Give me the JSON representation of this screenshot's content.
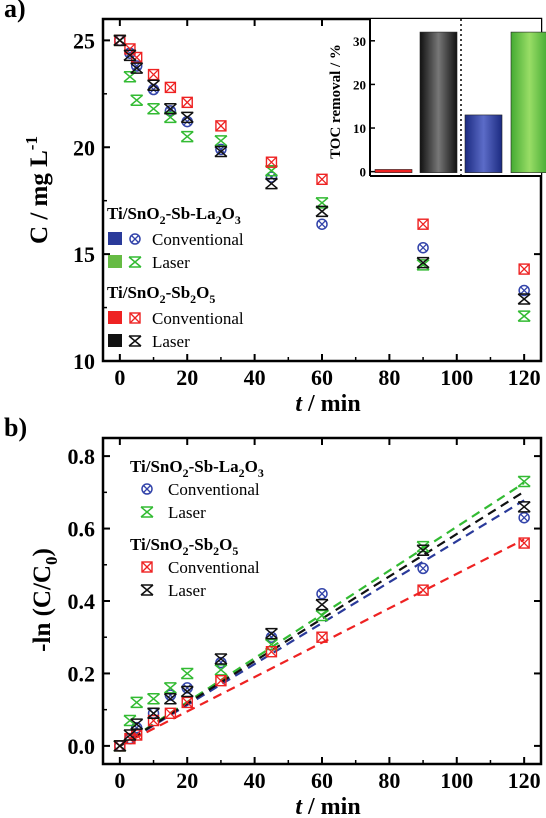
{
  "chart_data": [
    {
      "panel_label": "a)",
      "type": "scatter",
      "xlabel": "t / min",
      "ylabel": "C / mg L-1",
      "xlim": [
        -5,
        125
      ],
      "ylim": [
        10,
        26
      ],
      "xticks": [
        0,
        20,
        40,
        60,
        80,
        100,
        120
      ],
      "yticks": [
        10,
        15,
        20,
        25
      ],
      "legend_groups": [
        {
          "title": "Ti/SnO2-Sb-La2O3",
          "entries": [
            "Conventional",
            "Laser"
          ]
        },
        {
          "title": "Ti/SnO2-Sb2O5",
          "entries": [
            "Conventional",
            "Laser"
          ]
        }
      ],
      "series": [
        {
          "name": "Conventional",
          "group": "Ti/SnO2-Sb-La2O3",
          "color": "#3344aa",
          "marker": "circle-x",
          "x": [
            0,
            3,
            5,
            10,
            15,
            20,
            30,
            45,
            60,
            90,
            120
          ],
          "y": [
            25.0,
            24.4,
            23.8,
            22.7,
            21.7,
            21.2,
            19.9,
            18.6,
            16.4,
            15.3,
            13.3
          ]
        },
        {
          "name": "Laser",
          "group": "Ti/SnO2-Sb-La2O3",
          "color": "#33bb33",
          "marker": "hourglass",
          "x": [
            0,
            3,
            5,
            10,
            15,
            20,
            30,
            45,
            60,
            90,
            120
          ],
          "y": [
            25.0,
            23.3,
            22.2,
            21.8,
            21.4,
            20.5,
            20.3,
            18.9,
            17.4,
            14.5,
            12.1
          ]
        },
        {
          "name": "Conventional",
          "group": "Ti/SnO2-Sb2O5",
          "color": "#ee2222",
          "marker": "square-x",
          "x": [
            0,
            3,
            5,
            10,
            15,
            20,
            30,
            45,
            60,
            90,
            120
          ],
          "y": [
            25.0,
            24.6,
            24.2,
            23.4,
            22.8,
            22.1,
            21.0,
            19.3,
            18.5,
            16.4,
            14.3
          ]
        },
        {
          "name": "Laser",
          "group": "Ti/SnO2-Sb2O5",
          "color": "#111111",
          "marker": "hourglass",
          "x": [
            0,
            3,
            5,
            10,
            15,
            20,
            30,
            45,
            60,
            90,
            120
          ],
          "y": [
            25.0,
            24.3,
            23.7,
            22.9,
            21.8,
            21.4,
            19.8,
            18.3,
            17.0,
            14.6,
            12.9
          ]
        }
      ],
      "inset": {
        "type": "bar",
        "ylabel": "TOC removal / %",
        "yticks": [
          0,
          10,
          20,
          30
        ],
        "ylim": [
          -1,
          35
        ],
        "bars": [
          {
            "value": 0.5,
            "color": "#ee2222"
          },
          {
            "value": 32,
            "color": "#222222"
          },
          {
            "value": 13,
            "color": "#2a3a9a"
          },
          {
            "value": 32,
            "color": "#55bb44"
          }
        ]
      }
    },
    {
      "panel_label": "b)",
      "type": "scatter",
      "xlabel": "t / min",
      "ylabel": "-ln (C/C0)",
      "xlim": [
        -5,
        125
      ],
      "ylim": [
        -0.05,
        0.85
      ],
      "xticks": [
        0,
        20,
        40,
        60,
        80,
        100,
        120
      ],
      "yticks": [
        0.0,
        0.2,
        0.4,
        0.6,
        0.8
      ],
      "yticklabels": [
        "0.0",
        "0.2",
        "0.4",
        "0.6",
        "0.8"
      ],
      "legend_groups": [
        {
          "title": "Ti/SnO2-Sb-La2O3",
          "entries": [
            "Conventional",
            "Laser"
          ]
        },
        {
          "title": "Ti/SnO2-Sb2O5",
          "entries": [
            "Conventional",
            "Laser"
          ]
        }
      ],
      "series": [
        {
          "name": "Conventional",
          "group": "Ti/SnO2-Sb-La2O3",
          "color": "#3344aa",
          "marker": "circle-x",
          "x": [
            0,
            3,
            5,
            10,
            15,
            20,
            30,
            45,
            60,
            90,
            120
          ],
          "y": [
            0.0,
            0.02,
            0.05,
            0.09,
            0.14,
            0.16,
            0.23,
            0.3,
            0.42,
            0.49,
            0.63
          ],
          "fit_slope": 0.00565,
          "fit_dash_color": "#2a3a9a"
        },
        {
          "name": "Laser",
          "group": "Ti/SnO2-Sb-La2O3",
          "color": "#33bb33",
          "marker": "hourglass",
          "x": [
            0,
            3,
            5,
            10,
            15,
            20,
            30,
            45,
            60,
            90,
            120
          ],
          "y": [
            0.0,
            0.07,
            0.12,
            0.13,
            0.16,
            0.2,
            0.21,
            0.28,
            0.36,
            0.55,
            0.73
          ],
          "fit_slope": 0.00605,
          "fit_dash_color": "#33bb33"
        },
        {
          "name": "Conventional",
          "group": "Ti/SnO2-Sb2O5",
          "color": "#ee2222",
          "marker": "square-x",
          "x": [
            0,
            3,
            5,
            10,
            15,
            20,
            30,
            45,
            60,
            90,
            120
          ],
          "y": [
            0.0,
            0.02,
            0.03,
            0.07,
            0.09,
            0.12,
            0.18,
            0.26,
            0.3,
            0.43,
            0.56
          ],
          "fit_slope": 0.00475,
          "fit_dash_color": "#ee2222"
        },
        {
          "name": "Laser",
          "group": "Ti/SnO2-Sb2O5",
          "color": "#111111",
          "marker": "hourglass",
          "x": [
            0,
            3,
            5,
            10,
            15,
            20,
            30,
            45,
            60,
            90,
            120
          ],
          "y": [
            0.0,
            0.03,
            0.06,
            0.09,
            0.13,
            0.15,
            0.24,
            0.31,
            0.39,
            0.54,
            0.66
          ],
          "fit_slope": 0.00585,
          "fit_dash_color": "#111111"
        }
      ]
    }
  ]
}
